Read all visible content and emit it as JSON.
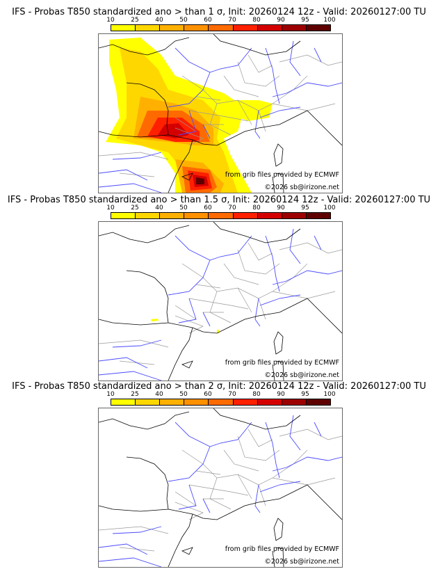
{
  "panels": [
    {
      "title": "IFS - Probas T850  standardized ano > than 1 σ, Init: 20260124 12z - Valid: 20260127:00 TU",
      "threshold": "1 σ"
    },
    {
      "title": "IFS - Probas T850  standardized ano > than 1.5 σ, Init: 20260124 12z - Valid: 20260127:00 TU",
      "threshold": "1.5 σ"
    },
    {
      "title": "IFS - Probas T850  standardized ano > than 2 σ, Init: 20260124 12z - Valid: 20260127:00 TU",
      "threshold": "2 σ"
    }
  ],
  "colorbar": {
    "ticks": [
      "10",
      "25",
      "40",
      "50",
      "60",
      "70",
      "80",
      "90",
      "95",
      "100"
    ],
    "colors": [
      "#ffff00",
      "#ffd700",
      "#ffb000",
      "#ff9000",
      "#ff6a00",
      "#ff2000",
      "#d40000",
      "#9c0000",
      "#5e0000"
    ]
  },
  "credits": {
    "source": "from grib files provided by ECMWF",
    "copyright": "©2026 sb@irizone.net"
  }
}
